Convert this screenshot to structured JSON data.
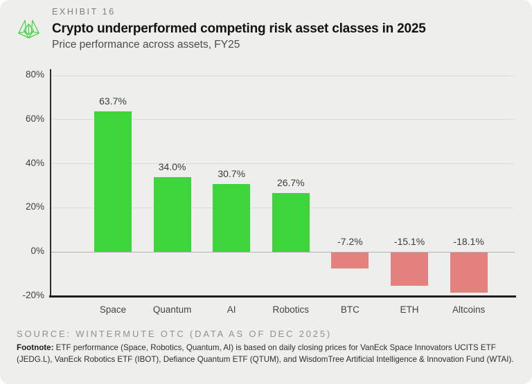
{
  "header": {
    "exhibit_label": "EXHIBIT 16",
    "title": "Crypto underperformed competing risk asset classes in 2025",
    "subtitle": "Price performance across assets, FY25",
    "logo_icon": "wintermute-logo",
    "logo_color": "#3ed43c"
  },
  "chart_data": {
    "type": "bar",
    "title": "Crypto underperformed competing risk asset classes in 2025",
    "subtitle": "Price performance across assets, FY25",
    "categories": [
      "Space",
      "Quantum",
      "AI",
      "Robotics",
      "BTC",
      "ETH",
      "Altcoins"
    ],
    "values": [
      63.7,
      34.0,
      30.7,
      26.7,
      -7.2,
      -15.1,
      -18.1
    ],
    "value_labels": [
      "63.7%",
      "34.0%",
      "30.7%",
      "26.7%",
      "-7.2%",
      "-15.1%",
      "-18.1%"
    ],
    "xlabel": "",
    "ylabel": "",
    "ylim": [
      -20,
      80
    ],
    "yticks": [
      80,
      60,
      40,
      20,
      0,
      -20
    ],
    "ytick_labels": [
      "80%",
      "60%",
      "40%",
      "20%",
      "0%",
      "-20%"
    ],
    "grid": true,
    "legend": "none",
    "positive_color": "#3ed43c",
    "negative_color": "#e2817d",
    "background_color": "#eeeeec"
  },
  "footer": {
    "source": "SOURCE: WINTERMUTE OTC (DATA AS OF DEC 2025)",
    "footnote_label": "Footnote:",
    "footnote_text": " ETF performance (Space, Robotics, Quantum, AI) is based on daily closing prices for VanEck Space Innovators UCITS ETF (JEDG.L), VanEck Robotics ETF (IBOT), Defiance Quantum ETF (QTUM), and WisdomTree Artificial Intelligence & Innovation Fund (WTAI)."
  }
}
